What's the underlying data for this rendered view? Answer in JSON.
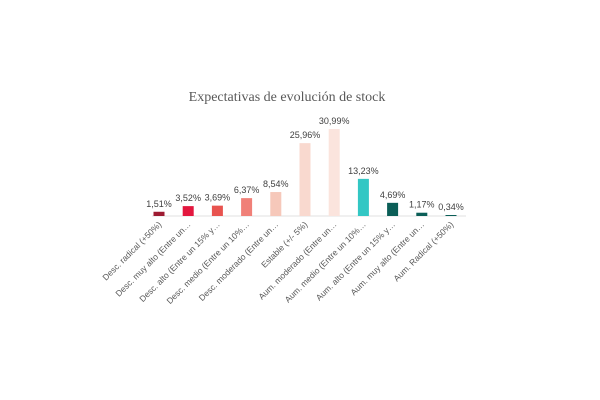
{
  "chart_data": {
    "type": "bar",
    "title": "Expectativas de evolución de stock",
    "categories": [
      "Desc. radical (+50%)",
      "Desc. muy alto (Entre un…",
      "Desc. alto (Entre un 15% y…",
      "Desc. medio (Entre un 10%…",
      "Desc. moderado (Entre un…",
      "Estable (+/- 5%)",
      "Aum. moderado (Entre un…",
      "Aum. medio (Entre un 10%…",
      "Aum. alto (Entre un 15% y…",
      "Aum. muy alto (Entre un…",
      "Aum. Radical (+50%)"
    ],
    "values": [
      1.51,
      3.52,
      3.69,
      6.37,
      8.54,
      25.96,
      30.99,
      13.23,
      4.69,
      1.17,
      0.34
    ],
    "value_labels": [
      "1,51%",
      "3,52%",
      "3,69%",
      "6,37%",
      "8,54%",
      "25,96%",
      "30,99%",
      "13,23%",
      "4,69%",
      "1,17%",
      "0,34%"
    ],
    "colors": [
      "#9e1b32",
      "#e3173e",
      "#e8534f",
      "#f08078",
      "#f6c8ba",
      "#f9d9cf",
      "#fbe4dd",
      "#33c7c4",
      "#0b5e57",
      "#0b5e57",
      "#0b5e57"
    ],
    "xlabel": "",
    "ylabel": "",
    "ylim": [
      0,
      31
    ],
    "grid": false,
    "legend": "none"
  }
}
